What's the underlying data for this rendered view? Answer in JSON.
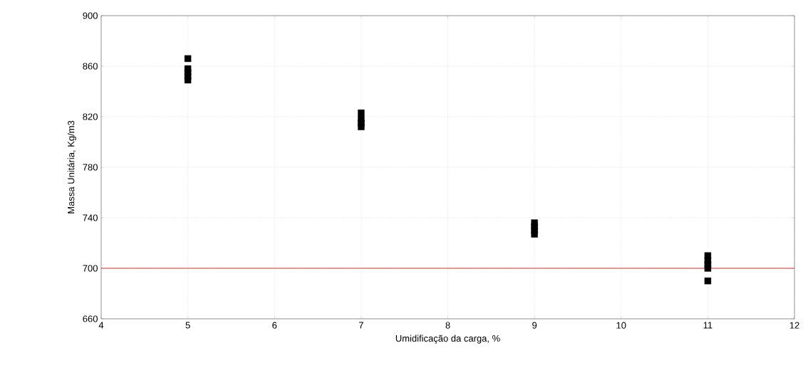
{
  "chart_data": {
    "type": "scatter",
    "xlabel": "Umidificação da carga, %",
    "ylabel": "Massa Unitária, Kg/m3",
    "x": [
      5,
      5,
      5,
      5,
      5,
      7,
      7,
      7,
      7,
      9,
      9,
      9,
      9,
      11,
      11,
      11,
      11,
      11
    ],
    "values": [
      866,
      858,
      855,
      852,
      849,
      823,
      818,
      815,
      812,
      736,
      733,
      730,
      727,
      710,
      706,
      703,
      700,
      690
    ],
    "color": "#000000",
    "marker": "square",
    "xlim": [
      4,
      12
    ],
    "xticks": [
      4,
      5,
      6,
      7,
      8,
      9,
      10,
      11,
      12
    ],
    "ylim": [
      660,
      900
    ],
    "yticks": [
      660,
      700,
      740,
      780,
      820,
      860,
      900
    ],
    "ref_lines": [
      {
        "axis": "y",
        "value": 700,
        "color": "#e03030"
      }
    ],
    "grid": true
  }
}
